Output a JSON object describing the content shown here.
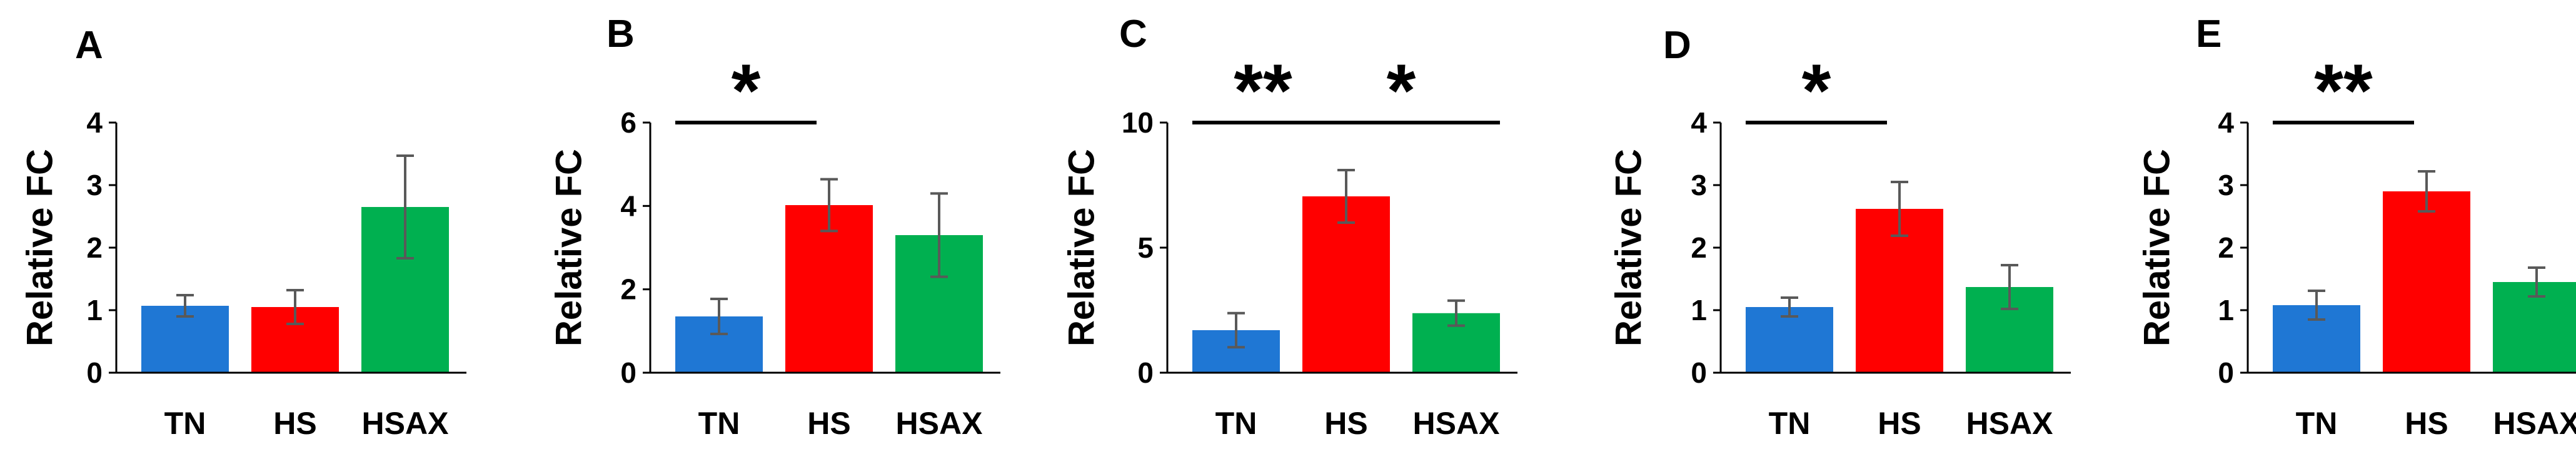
{
  "colors": {
    "TN": "#1f77d4",
    "HS": "#ff0000",
    "HSAX": "#00b050",
    "error_bar": "#595959",
    "axis": "#000000"
  },
  "chart_data": [
    {
      "type": "bar",
      "panel": "A",
      "ylabel": "Relative FC",
      "categories": [
        "TN",
        "HS",
        "HSAX"
      ],
      "values": [
        1.07,
        1.05,
        2.65
      ],
      "errors": [
        0.17,
        0.27,
        0.82
      ],
      "ylim": [
        0,
        4
      ],
      "yticks": [
        "0",
        "1",
        "2",
        "3",
        "4"
      ],
      "significance": []
    },
    {
      "type": "bar",
      "panel": "B",
      "ylabel": "Relative FC",
      "categories": [
        "TN",
        "HS",
        "HSAX"
      ],
      "values": [
        1.35,
        4.02,
        3.3
      ],
      "errors": [
        0.42,
        0.62,
        1.0
      ],
      "ylim": [
        0,
        6
      ],
      "yticks": [
        "0",
        "2",
        "4",
        "6"
      ],
      "significance": [
        {
          "from": 0,
          "to": 1,
          "label": "*"
        }
      ]
    },
    {
      "type": "bar",
      "panel": "C",
      "ylabel": "Relative FC",
      "categories": [
        "TN",
        "HS",
        "HSAX"
      ],
      "values": [
        1.7,
        7.05,
        2.38
      ],
      "errors": [
        0.68,
        1.05,
        0.5
      ],
      "ylim": [
        0,
        10
      ],
      "yticks": [
        "0",
        "5",
        "10"
      ],
      "significance": [
        {
          "from": 0,
          "to": 1,
          "label": "**"
        },
        {
          "from": 1,
          "to": 2,
          "label": "*"
        }
      ]
    },
    {
      "type": "bar",
      "panel": "D",
      "ylabel": "Relative FC",
      "categories": [
        "TN",
        "HS",
        "HSAX"
      ],
      "values": [
        1.05,
        2.62,
        1.37
      ],
      "errors": [
        0.15,
        0.43,
        0.35
      ],
      "ylim": [
        0,
        4
      ],
      "yticks": [
        "0",
        "1",
        "2",
        "3",
        "4"
      ],
      "significance": [
        {
          "from": 0,
          "to": 1,
          "label": "*"
        }
      ]
    },
    {
      "type": "bar",
      "panel": "E",
      "ylabel": "Relative FC",
      "categories": [
        "TN",
        "HS",
        "HSAX"
      ],
      "values": [
        1.08,
        2.9,
        1.45
      ],
      "errors": [
        0.23,
        0.32,
        0.23
      ],
      "ylim": [
        0,
        4
      ],
      "yticks": [
        "0",
        "1",
        "2",
        "3",
        "4"
      ],
      "significance": [
        {
          "from": 0,
          "to": 1,
          "label": "**"
        }
      ]
    }
  ]
}
